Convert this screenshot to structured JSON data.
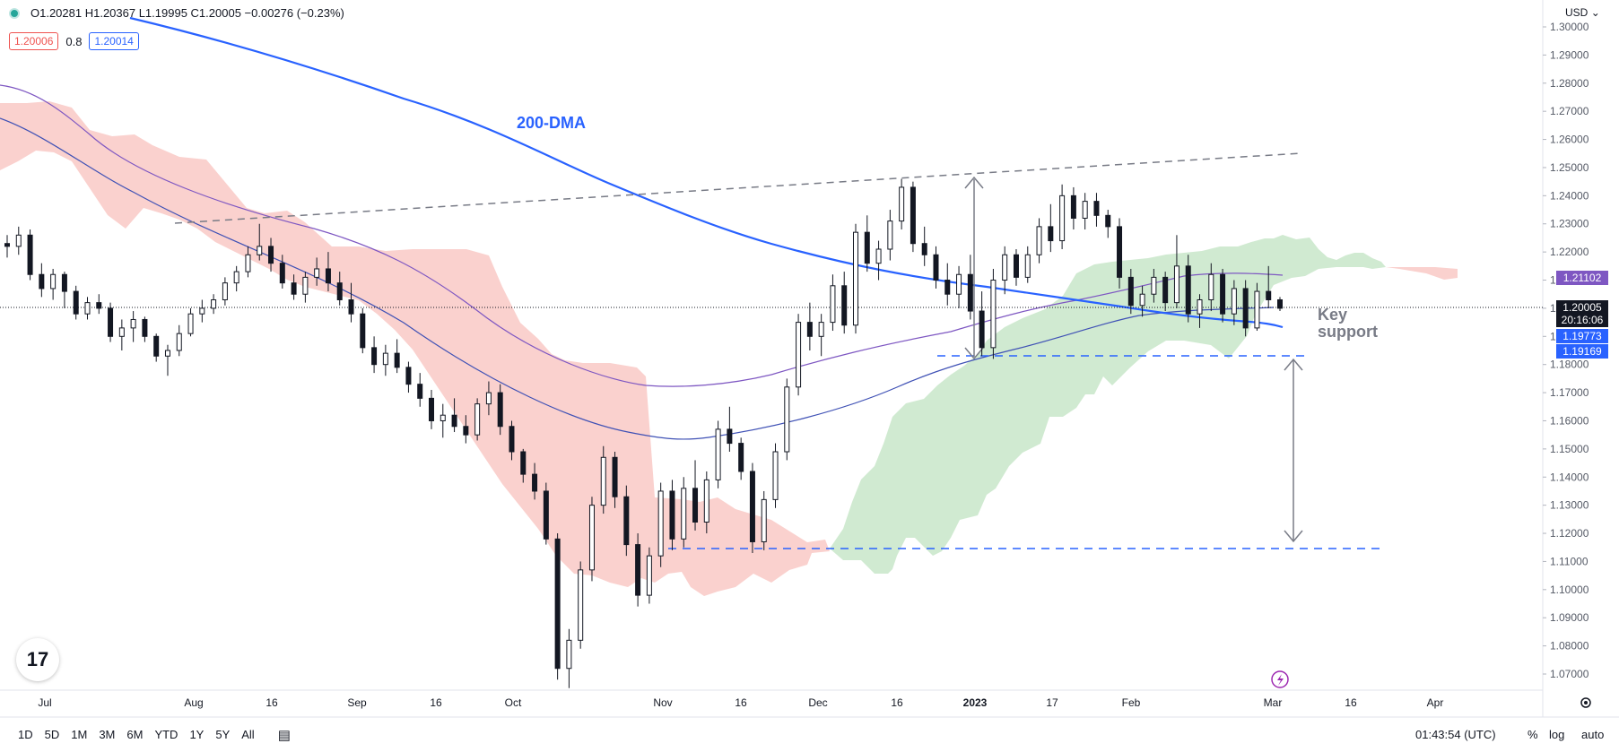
{
  "header": {
    "ohlc_text": "O1.20281  H1.20367  L1.19995  C1.20005  −0.00276 (−0.23%)",
    "ind_red": "1.20006",
    "ind_mid": "0.8",
    "ind_blue": "1.20014",
    "currency": "USD"
  },
  "price_tags": {
    "purple": "1.21102",
    "last": "1.20005",
    "countdown": "20:16:06",
    "blue1": "1.19773",
    "blue2": "1.19169"
  },
  "annotations": {
    "dma": "200-DMA",
    "key1": "Key",
    "key2": "support"
  },
  "bottom": {
    "ranges": [
      "1D",
      "5D",
      "1M",
      "3M",
      "6M",
      "YTD",
      "1Y",
      "5Y",
      "All"
    ],
    "time": "01:43:54 (UTC)",
    "pct": "%",
    "log": "log",
    "auto": "auto"
  },
  "colors": {
    "up": "#ffffff",
    "down": "#131722",
    "dma": "#2962ff",
    "ma_purple": "#7e57c2",
    "cloud_red": "#f9c9c6",
    "cloud_green": "#c8e6c9",
    "dashed_blue": "#2962ff",
    "dashed_gray": "#787b86"
  },
  "chart_data": {
    "type": "candlestick",
    "title": "",
    "y_ticks": [
      "1.30000",
      "1.29000",
      "1.28000",
      "1.27000",
      "1.26000",
      "1.25000",
      "1.24000",
      "1.23000",
      "1.22000",
      "1.21000",
      "1.20000",
      "1.19000",
      "1.18000",
      "1.17000",
      "1.16000",
      "1.15000",
      "1.14000",
      "1.13000",
      "1.12000",
      "1.11000",
      "1.10000",
      "1.09000",
      "1.08000",
      "1.07000"
    ],
    "ylim": [
      1.065,
      1.302
    ],
    "x_ticks": [
      "Jul",
      "Aug",
      "16",
      "Sep",
      "16",
      "Oct",
      "Nov",
      "16",
      "Dec",
      "16",
      "2023",
      "17",
      "Feb",
      "Mar",
      "16",
      "Apr"
    ],
    "candles": [
      [
        1.223,
        1.226,
        1.218,
        1.222
      ],
      [
        1.222,
        1.229,
        1.219,
        1.226
      ],
      [
        1.226,
        1.228,
        1.21,
        1.212
      ],
      [
        1.212,
        1.216,
        1.204,
        1.207
      ],
      [
        1.207,
        1.214,
        1.203,
        1.212
      ],
      [
        1.212,
        1.213,
        1.2,
        1.206
      ],
      [
        1.206,
        1.208,
        1.196,
        1.198
      ],
      [
        1.198,
        1.204,
        1.196,
        1.202
      ],
      [
        1.202,
        1.205,
        1.198,
        1.2
      ],
      [
        1.2,
        1.202,
        1.188,
        1.19
      ],
      [
        1.19,
        1.196,
        1.185,
        1.193
      ],
      [
        1.193,
        1.199,
        1.188,
        1.196
      ],
      [
        1.196,
        1.197,
        1.188,
        1.19
      ],
      [
        1.19,
        1.191,
        1.181,
        1.183
      ],
      [
        1.183,
        1.187,
        1.176,
        1.185
      ],
      [
        1.185,
        1.194,
        1.183,
        1.191
      ],
      [
        1.191,
        1.2,
        1.19,
        1.198
      ],
      [
        1.198,
        1.203,
        1.195,
        1.2
      ],
      [
        1.2,
        1.205,
        1.198,
        1.203
      ],
      [
        1.203,
        1.211,
        1.201,
        1.209
      ],
      [
        1.209,
        1.215,
        1.206,
        1.213
      ],
      [
        1.213,
        1.222,
        1.211,
        1.219
      ],
      [
        1.219,
        1.23,
        1.217,
        1.222
      ],
      [
        1.222,
        1.225,
        1.213,
        1.216
      ],
      [
        1.216,
        1.219,
        1.207,
        1.209
      ],
      [
        1.209,
        1.212,
        1.203,
        1.205
      ],
      [
        1.205,
        1.213,
        1.202,
        1.211
      ],
      [
        1.211,
        1.218,
        1.208,
        1.214
      ],
      [
        1.214,
        1.22,
        1.206,
        1.209
      ],
      [
        1.209,
        1.213,
        1.201,
        1.203
      ],
      [
        1.203,
        1.209,
        1.195,
        1.198
      ],
      [
        1.198,
        1.2,
        1.184,
        1.186
      ],
      [
        1.186,
        1.19,
        1.177,
        1.18
      ],
      [
        1.18,
        1.187,
        1.176,
        1.184
      ],
      [
        1.184,
        1.189,
        1.177,
        1.179
      ],
      [
        1.179,
        1.181,
        1.17,
        1.173
      ],
      [
        1.173,
        1.177,
        1.165,
        1.168
      ],
      [
        1.168,
        1.171,
        1.157,
        1.16
      ],
      [
        1.16,
        1.166,
        1.154,
        1.162
      ],
      [
        1.162,
        1.168,
        1.156,
        1.158
      ],
      [
        1.158,
        1.162,
        1.152,
        1.155
      ],
      [
        1.155,
        1.168,
        1.153,
        1.166
      ],
      [
        1.166,
        1.174,
        1.162,
        1.17
      ],
      [
        1.17,
        1.173,
        1.155,
        1.158
      ],
      [
        1.158,
        1.16,
        1.146,
        1.149
      ],
      [
        1.149,
        1.15,
        1.138,
        1.141
      ],
      [
        1.141,
        1.145,
        1.132,
        1.135
      ],
      [
        1.135,
        1.138,
        1.116,
        1.118
      ],
      [
        1.118,
        1.12,
        1.068,
        1.072
      ],
      [
        1.072,
        1.086,
        1.065,
        1.082
      ],
      [
        1.082,
        1.11,
        1.079,
        1.107
      ],
      [
        1.107,
        1.133,
        1.103,
        1.13
      ],
      [
        1.13,
        1.151,
        1.127,
        1.147
      ],
      [
        1.147,
        1.149,
        1.129,
        1.133
      ],
      [
        1.133,
        1.137,
        1.112,
        1.116
      ],
      [
        1.116,
        1.12,
        1.094,
        1.098
      ],
      [
        1.098,
        1.115,
        1.095,
        1.112
      ],
      [
        1.112,
        1.138,
        1.108,
        1.135
      ],
      [
        1.135,
        1.139,
        1.114,
        1.118
      ],
      [
        1.118,
        1.14,
        1.115,
        1.136
      ],
      [
        1.136,
        1.146,
        1.121,
        1.124
      ],
      [
        1.124,
        1.142,
        1.12,
        1.139
      ],
      [
        1.139,
        1.16,
        1.136,
        1.157
      ],
      [
        1.157,
        1.165,
        1.149,
        1.152
      ],
      [
        1.152,
        1.154,
        1.139,
        1.142
      ],
      [
        1.142,
        1.145,
        1.113,
        1.117
      ],
      [
        1.117,
        1.135,
        1.114,
        1.132
      ],
      [
        1.132,
        1.152,
        1.129,
        1.149
      ],
      [
        1.149,
        1.175,
        1.146,
        1.172
      ],
      [
        1.172,
        1.198,
        1.169,
        1.195
      ],
      [
        1.195,
        1.202,
        1.185,
        1.19
      ],
      [
        1.19,
        1.198,
        1.183,
        1.195
      ],
      [
        1.195,
        1.212,
        1.192,
        1.208
      ],
      [
        1.208,
        1.213,
        1.191,
        1.194
      ],
      [
        1.194,
        1.23,
        1.191,
        1.227
      ],
      [
        1.227,
        1.233,
        1.213,
        1.216
      ],
      [
        1.216,
        1.224,
        1.21,
        1.221
      ],
      [
        1.221,
        1.235,
        1.217,
        1.231
      ],
      [
        1.231,
        1.246,
        1.228,
        1.243
      ],
      [
        1.243,
        1.245,
        1.22,
        1.223
      ],
      [
        1.223,
        1.229,
        1.215,
        1.219
      ],
      [
        1.219,
        1.222,
        1.207,
        1.21
      ],
      [
        1.21,
        1.216,
        1.201,
        1.205
      ],
      [
        1.205,
        1.215,
        1.2,
        1.212
      ],
      [
        1.212,
        1.219,
        1.196,
        1.199
      ],
      [
        1.199,
        1.206,
        1.183,
        1.186
      ],
      [
        1.186,
        1.214,
        1.182,
        1.21
      ],
      [
        1.21,
        1.222,
        1.205,
        1.219
      ],
      [
        1.219,
        1.221,
        1.208,
        1.211
      ],
      [
        1.211,
        1.222,
        1.209,
        1.219
      ],
      [
        1.219,
        1.232,
        1.216,
        1.229
      ],
      [
        1.229,
        1.237,
        1.22,
        1.224
      ],
      [
        1.224,
        1.244,
        1.221,
        1.24
      ],
      [
        1.24,
        1.243,
        1.228,
        1.232
      ],
      [
        1.232,
        1.241,
        1.228,
        1.238
      ],
      [
        1.238,
        1.241,
        1.229,
        1.233
      ],
      [
        1.233,
        1.235,
        1.225,
        1.229
      ],
      [
        1.229,
        1.232,
        1.207,
        1.211
      ],
      [
        1.211,
        1.214,
        1.198,
        1.201
      ],
      [
        1.201,
        1.208,
        1.197,
        1.205
      ],
      [
        1.205,
        1.214,
        1.202,
        1.211
      ],
      [
        1.211,
        1.213,
        1.199,
        1.202
      ],
      [
        1.202,
        1.226,
        1.2,
        1.215
      ],
      [
        1.215,
        1.219,
        1.195,
        1.198
      ],
      [
        1.198,
        1.205,
        1.193,
        1.203
      ],
      [
        1.203,
        1.216,
        1.199,
        1.212
      ],
      [
        1.212,
        1.214,
        1.195,
        1.198
      ],
      [
        1.198,
        1.21,
        1.194,
        1.207
      ],
      [
        1.207,
        1.21,
        1.19,
        1.193
      ],
      [
        1.193,
        1.209,
        1.192,
        1.206
      ],
      [
        1.206,
        1.215,
        1.2,
        1.203
      ],
      [
        1.203,
        1.204,
        1.199,
        1.2
      ]
    ],
    "series_labels": [
      "200-DMA"
    ]
  }
}
